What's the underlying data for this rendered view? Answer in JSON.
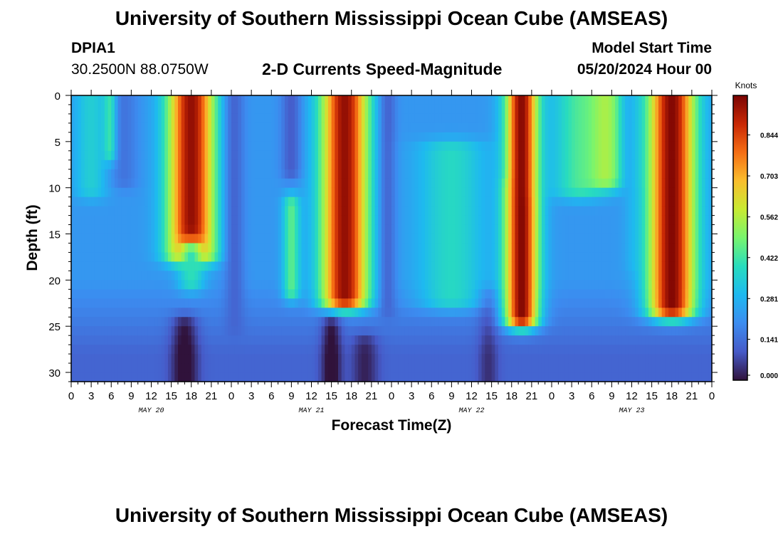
{
  "header": {
    "title": "University of Southern Mississippi Ocean Cube (AMSEAS)",
    "station_id": "DPIA1",
    "station_coords": "30.2500N  88.0750W",
    "plot_subtitle": "2-D Currents Speed-Magnitude",
    "model_start_label": "Model Start Time",
    "model_start_value": "05/20/2024 Hour 00"
  },
  "footer": {
    "title": "University of Southern Mississippi Ocean Cube (AMSEAS)"
  },
  "colors": {
    "background": "#ffffff",
    "axis": "#000000",
    "colormap": "jet"
  },
  "chart_data": {
    "type": "heatmap",
    "title": "2-D Currents Speed-Magnitude",
    "xlabel": "Forecast Time(Z)",
    "ylabel": "Depth (ft)",
    "xlim": [
      0,
      96
    ],
    "ylim": [
      31,
      0
    ],
    "x_unit": "hours since model start (05/20/2024 00Z)",
    "x_tick_labels": [
      "0",
      "3",
      "6",
      "9",
      "12",
      "15",
      "18",
      "21",
      "0",
      "3",
      "6",
      "9",
      "12",
      "15",
      "18",
      "21",
      "0",
      "3",
      "6",
      "9",
      "12",
      "15",
      "18",
      "21",
      "0",
      "3",
      "6",
      "9",
      "12",
      "15",
      "18",
      "21",
      "0"
    ],
    "x_tick_hours": [
      0,
      3,
      6,
      9,
      12,
      15,
      18,
      21,
      24,
      27,
      30,
      33,
      36,
      39,
      42,
      45,
      48,
      51,
      54,
      57,
      60,
      63,
      66,
      69,
      72,
      75,
      78,
      81,
      84,
      87,
      90,
      93,
      96
    ],
    "day_labels": [
      {
        "text": "MAY 20",
        "hour": 12
      },
      {
        "text": "MAY 21",
        "hour": 36
      },
      {
        "text": "MAY 22",
        "hour": 60
      },
      {
        "text": "MAY 23",
        "hour": 84
      }
    ],
    "y_ticks": [
      0,
      5,
      10,
      15,
      20,
      25,
      30
    ],
    "colorbar": {
      "label": "Knots",
      "ticks": [
        "0.000",
        "0.141",
        "0.281",
        "0.422",
        "0.562",
        "0.703",
        "0.844"
      ],
      "tick_values": [
        0.0,
        0.141,
        0.281,
        0.422,
        0.562,
        0.703,
        0.844
      ],
      "range": [
        0,
        0.98
      ]
    },
    "speed_field": {
      "description_units": "knots",
      "background": 0.22,
      "deep_background": 0.12,
      "features": [
        {
          "t": 6,
          "dt": 1.2,
          "z0": 0,
          "z1": 6,
          "v": 0.6
        },
        {
          "t": 3,
          "dt": 2.5,
          "z0": 0,
          "z1": 10,
          "v": 0.35
        },
        {
          "t": 8,
          "dt": 2.0,
          "z0": 0,
          "z1": 9,
          "v": 0.15
        },
        {
          "t": 18,
          "dt": 3.5,
          "z0": 0,
          "z1": 17,
          "v": 0.95
        },
        {
          "t": 18,
          "dt": 2.0,
          "z0": 17,
          "z1": 20,
          "v": 0.4
        },
        {
          "t": 24.5,
          "dt": 1.5,
          "z0": 0,
          "z1": 25,
          "v": 0.12
        },
        {
          "t": 33,
          "dt": 1.5,
          "z0": 0,
          "z1": 8,
          "v": 0.1
        },
        {
          "t": 33,
          "dt": 1.3,
          "z0": 12,
          "z1": 21,
          "v": 0.45
        },
        {
          "t": 41,
          "dt": 3.5,
          "z0": 0,
          "z1": 22,
          "v": 0.95
        },
        {
          "t": 47.5,
          "dt": 1.3,
          "z0": 0,
          "z1": 23,
          "v": 0.12
        },
        {
          "t": 57,
          "dt": 5,
          "z0": 6,
          "z1": 22,
          "v": 0.38
        },
        {
          "t": 65.5,
          "dt": 1.3,
          "z0": 0,
          "z1": 8,
          "v": 0.15
        },
        {
          "t": 67.5,
          "dt": 2.5,
          "z0": 0,
          "z1": 24,
          "v": 0.97
        },
        {
          "t": 76,
          "dt": 4,
          "z0": 0,
          "z1": 10,
          "v": 0.42
        },
        {
          "t": 80,
          "dt": 3,
          "z0": 0,
          "z1": 9,
          "v": 0.55
        },
        {
          "t": 84,
          "dt": 1.3,
          "z0": 0,
          "z1": 18,
          "v": 0.25
        },
        {
          "t": 90,
          "dt": 3.5,
          "z0": 0,
          "z1": 23,
          "v": 0.97
        },
        {
          "t": 17,
          "dt": 2,
          "z0": 25,
          "z1": 31,
          "v": -0.15
        },
        {
          "t": 39,
          "dt": 1.5,
          "z0": 25,
          "z1": 31,
          "v": -0.15
        },
        {
          "t": 44,
          "dt": 2,
          "z0": 27,
          "z1": 31,
          "v": -0.1
        },
        {
          "t": 62.5,
          "dt": 1.5,
          "z0": 22,
          "z1": 31,
          "v": -0.08
        }
      ]
    }
  }
}
